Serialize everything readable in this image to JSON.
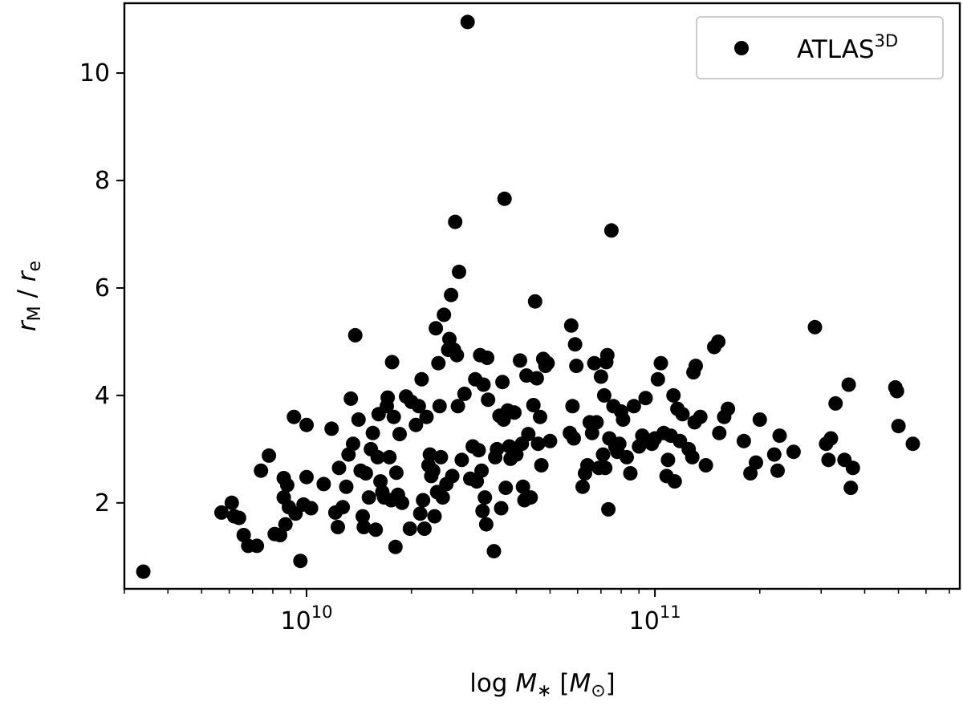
{
  "chart_data": {
    "type": "scatter",
    "xscale": "log",
    "xlim": [
      3000000000,
      750000000000
    ],
    "ylim": [
      0.4,
      11.3
    ],
    "grid": false,
    "legend_position": "top-right",
    "xlabel": {
      "prefix": "log ",
      "symbol": "M",
      "sub": "∗",
      "unit_open": " [",
      "unit_symbol": "M",
      "unit_sub": "⊙",
      "unit_close": "]"
    },
    "ylabel": {
      "r1": "r",
      "s1": "M",
      "sep": " / ",
      "r2": "r",
      "s2": "e"
    },
    "x_major_ticks": [
      {
        "value": 10000000000,
        "base": "10",
        "exp": "10"
      },
      {
        "value": 100000000000,
        "base": "10",
        "exp": "11"
      }
    ],
    "y_ticks": [
      2,
      4,
      6,
      8,
      10
    ],
    "series": [
      {
        "name": "ATLAS",
        "name_sup": "3D",
        "color": "#000000",
        "points": [
          [
            3400000000.0,
            0.72
          ],
          [
            5700000000.0,
            1.82
          ],
          [
            6100000000.0,
            2.0
          ],
          [
            6200000000.0,
            1.75
          ],
          [
            6400000000.0,
            1.72
          ],
          [
            6600000000.0,
            1.4
          ],
          [
            6800000000.0,
            1.2
          ],
          [
            7200000000.0,
            1.2
          ],
          [
            7400000000.0,
            2.6
          ],
          [
            7800000000.0,
            2.88
          ],
          [
            8100000000.0,
            1.42
          ],
          [
            8400000000.0,
            1.4
          ],
          [
            8600000000.0,
            2.46
          ],
          [
            8600000000.0,
            2.1
          ],
          [
            8700000000.0,
            1.6
          ],
          [
            8800000000.0,
            2.33
          ],
          [
            8900000000.0,
            1.92
          ],
          [
            9200000000.0,
            3.6
          ],
          [
            9300000000.0,
            1.8
          ],
          [
            9600000000.0,
            0.92
          ],
          [
            9800000000.0,
            1.97
          ],
          [
            10000000000.0,
            3.45
          ],
          [
            10000000000.0,
            2.48
          ],
          [
            10300000000.0,
            1.9
          ],
          [
            11200000000.0,
            2.35
          ],
          [
            11800000000.0,
            3.38
          ],
          [
            12100000000.0,
            1.82
          ],
          [
            12300000000.0,
            1.55
          ],
          [
            12400000000.0,
            2.65
          ],
          [
            12700000000.0,
            1.92
          ],
          [
            13000000000.0,
            2.3
          ],
          [
            13200000000.0,
            2.9
          ],
          [
            13400000000.0,
            3.94
          ],
          [
            13600000000.0,
            3.1
          ],
          [
            13800000000.0,
            5.12
          ],
          [
            14100000000.0,
            3.55
          ],
          [
            14300000000.0,
            2.6
          ],
          [
            14500000000.0,
            1.75
          ],
          [
            14600000000.0,
            1.55
          ],
          [
            14800000000.0,
            2.55
          ],
          [
            15100000000.0,
            2.1
          ],
          [
            15300000000.0,
            3.0
          ],
          [
            15500000000.0,
            3.3
          ],
          [
            15800000000.0,
            1.5
          ],
          [
            16000000000.0,
            2.85
          ],
          [
            16100000000.0,
            3.65
          ],
          [
            16300000000.0,
            2.4
          ],
          [
            16500000000.0,
            2.2
          ],
          [
            16700000000.0,
            2.1
          ],
          [
            17000000000.0,
            3.8
          ],
          [
            17100000000.0,
            3.96
          ],
          [
            17300000000.0,
            2.85
          ],
          [
            17500000000.0,
            2.05
          ],
          [
            17600000000.0,
            4.62
          ],
          [
            17800000000.0,
            3.6
          ],
          [
            18000000000.0,
            1.18
          ],
          [
            18100000000.0,
            2.56
          ],
          [
            18300000000.0,
            2.15
          ],
          [
            18500000000.0,
            3.28
          ],
          [
            18800000000.0,
            2.0
          ],
          [
            19300000000.0,
            3.98
          ],
          [
            19800000000.0,
            1.52
          ],
          [
            20000000000.0,
            3.88
          ],
          [
            20600000000.0,
            3.45
          ],
          [
            21000000000.0,
            3.8
          ],
          [
            21200000000.0,
            1.8
          ],
          [
            21400000000.0,
            4.3
          ],
          [
            21600000000.0,
            2.05
          ],
          [
            21800000000.0,
            1.52
          ],
          [
            22100000000.0,
            3.6
          ],
          [
            22400000000.0,
            2.7
          ],
          [
            22600000000.0,
            2.9
          ],
          [
            22800000000.0,
            2.5
          ],
          [
            23100000000.0,
            2.6
          ],
          [
            23300000000.0,
            1.75
          ],
          [
            23500000000.0,
            5.25
          ],
          [
            23700000000.0,
            2.2
          ],
          [
            23900000000.0,
            4.6
          ],
          [
            24100000000.0,
            3.8
          ],
          [
            24300000000.0,
            2.85
          ],
          [
            24600000000.0,
            2.1
          ],
          [
            24800000000.0,
            5.5
          ],
          [
            25200000000.0,
            2.35
          ],
          [
            25500000000.0,
            4.85
          ],
          [
            25700000000.0,
            5.05
          ],
          [
            26000000000.0,
            5.87
          ],
          [
            26200000000.0,
            2.5
          ],
          [
            26500000000.0,
            4.85
          ],
          [
            26700000000.0,
            7.23
          ],
          [
            27000000000.0,
            4.75
          ],
          [
            27200000000.0,
            3.8
          ],
          [
            27400000000.0,
            6.3
          ],
          [
            27900000000.0,
            2.8
          ],
          [
            28400000000.0,
            4.03
          ],
          [
            29000000000.0,
            10.95
          ],
          [
            29500000000.0,
            2.45
          ],
          [
            30000000000.0,
            3.05
          ],
          [
            30500000000.0,
            4.3
          ],
          [
            30800000000.0,
            2.4
          ],
          [
            31200000000.0,
            2.98
          ],
          [
            31500000000.0,
            4.75
          ],
          [
            31800000000.0,
            2.6
          ],
          [
            32000000000.0,
            1.85
          ],
          [
            32200000000.0,
            4.2
          ],
          [
            32500000000.0,
            2.1
          ],
          [
            32800000000.0,
            1.6
          ],
          [
            33000000000.0,
            4.7
          ],
          [
            33200000000.0,
            3.92
          ],
          [
            34500000000.0,
            1.1
          ],
          [
            34800000000.0,
            2.85
          ],
          [
            35200000000.0,
            3.0
          ],
          [
            35800000000.0,
            3.62
          ],
          [
            36200000000.0,
            1.9
          ],
          [
            36500000000.0,
            4.25
          ],
          [
            36800000000.0,
            3.55
          ],
          [
            37000000000.0,
            7.66
          ],
          [
            37300000000.0,
            2.28
          ],
          [
            37800000000.0,
            3.72
          ],
          [
            38200000000.0,
            3.05
          ],
          [
            38500000000.0,
            2.82
          ],
          [
            39500000000.0,
            3.68
          ],
          [
            40000000000.0,
            2.9
          ],
          [
            41000000000.0,
            4.65
          ],
          [
            41500000000.0,
            3.1
          ],
          [
            41800000000.0,
            2.3
          ],
          [
            42200000000.0,
            2.05
          ],
          [
            42800000000.0,
            4.37
          ],
          [
            43300000000.0,
            3.28
          ],
          [
            44000000000.0,
            2.1
          ],
          [
            44800000000.0,
            3.82
          ],
          [
            45300000000.0,
            5.75
          ],
          [
            45800000000.0,
            4.32
          ],
          [
            46200000000.0,
            3.1
          ],
          [
            46800000000.0,
            3.6
          ],
          [
            47200000000.0,
            2.7
          ],
          [
            47800000000.0,
            4.68
          ],
          [
            48500000000.0,
            4.55
          ],
          [
            49200000000.0,
            4.6
          ],
          [
            50000000000.0,
            3.15
          ],
          [
            57000000000.0,
            3.3
          ],
          [
            57500000000.0,
            5.3
          ],
          [
            58000000000.0,
            3.8
          ],
          [
            58500000000.0,
            3.2
          ],
          [
            59000000000.0,
            4.95
          ],
          [
            59500000000.0,
            4.55
          ],
          [
            62000000000.0,
            2.3
          ],
          [
            63000000000.0,
            2.55
          ],
          [
            64000000000.0,
            2.7
          ],
          [
            65000000000.0,
            3.5
          ],
          [
            66000000000.0,
            3.3
          ],
          [
            67000000000.0,
            4.6
          ],
          [
            68000000000.0,
            3.5
          ],
          [
            69000000000.0,
            2.65
          ],
          [
            70000000000.0,
            4.35
          ],
          [
            71000000000.0,
            2.9
          ],
          [
            71500000000.0,
            4.0
          ],
          [
            72000000000.0,
            2.65
          ],
          [
            72500000000.0,
            4.62
          ],
          [
            73000000000.0,
            4.75
          ],
          [
            73500000000.0,
            1.88
          ],
          [
            74000000000.0,
            3.2
          ],
          [
            75000000000.0,
            7.07
          ],
          [
            76000000000.0,
            3.8
          ],
          [
            77000000000.0,
            3.05
          ],
          [
            78000000000.0,
            2.95
          ],
          [
            79000000000.0,
            3.1
          ],
          [
            80000000000.0,
            3.7
          ],
          [
            81000000000.0,
            3.55
          ],
          [
            83000000000.0,
            2.85
          ],
          [
            85000000000.0,
            2.55
          ],
          [
            87000000000.0,
            3.8
          ],
          [
            90000000000.0,
            3.05
          ],
          [
            92000000000.0,
            3.25
          ],
          [
            94000000000.0,
            3.95
          ],
          [
            98000000000.0,
            3.1
          ],
          [
            100000000000.0,
            3.2
          ],
          [
            102000000000.0,
            4.3
          ],
          [
            104000000000.0,
            4.6
          ],
          [
            106000000000.0,
            3.3
          ],
          [
            108000000000.0,
            2.5
          ],
          [
            109000000000.0,
            2.8
          ],
          [
            111000000000.0,
            3.25
          ],
          [
            113000000000.0,
            4.0
          ],
          [
            114000000000.0,
            2.4
          ],
          [
            116000000000.0,
            3.75
          ],
          [
            118000000000.0,
            3.15
          ],
          [
            120000000000.0,
            3.65
          ],
          [
            125000000000.0,
            3.0
          ],
          [
            128000000000.0,
            2.85
          ],
          [
            129000000000.0,
            4.43
          ],
          [
            130000000000.0,
            3.5
          ],
          [
            131000000000.0,
            4.55
          ],
          [
            135000000000.0,
            3.6
          ],
          [
            140000000000.0,
            2.7
          ],
          [
            148000000000.0,
            4.9
          ],
          [
            152000000000.0,
            5.0
          ],
          [
            153000000000.0,
            3.3
          ],
          [
            158000000000.0,
            3.6
          ],
          [
            162000000000.0,
            3.75
          ],
          [
            180000000000.0,
            3.15
          ],
          [
            188000000000.0,
            2.55
          ],
          [
            195000000000.0,
            2.75
          ],
          [
            200000000000.0,
            3.55
          ],
          [
            220000000000.0,
            2.9
          ],
          [
            225000000000.0,
            2.6
          ],
          [
            228000000000.0,
            3.25
          ],
          [
            250000000000.0,
            2.95
          ],
          [
            288000000000.0,
            5.27
          ],
          [
            310000000000.0,
            3.1
          ],
          [
            315000000000.0,
            2.8
          ],
          [
            320000000000.0,
            3.2
          ],
          [
            330000000000.0,
            3.85
          ],
          [
            350000000000.0,
            2.8
          ],
          [
            360000000000.0,
            4.2
          ],
          [
            365000000000.0,
            2.28
          ],
          [
            370000000000.0,
            2.65
          ],
          [
            490000000000.0,
            4.15
          ],
          [
            495000000000.0,
            4.08
          ],
          [
            500000000000.0,
            3.43
          ],
          [
            550000000000.0,
            3.1
          ]
        ]
      }
    ]
  }
}
